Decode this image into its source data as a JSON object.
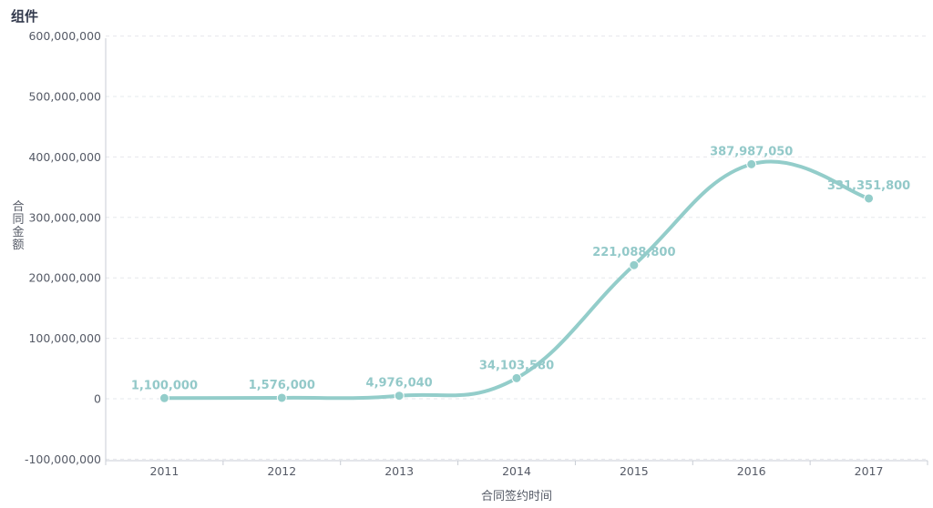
{
  "page": {
    "title": "组件"
  },
  "chart_data": {
    "type": "line",
    "title": "",
    "xlabel": "合同签约时间",
    "ylabel": "合同金额",
    "categories": [
      "2011",
      "2012",
      "2013",
      "2014",
      "2015",
      "2016",
      "2017"
    ],
    "series": [
      {
        "values": [
          1100000,
          1576000,
          4976040,
          34103580,
          221088800,
          387987050,
          331351800
        ],
        "labels": [
          "1,100,000",
          "1,576,000",
          "4,976,040",
          "34,103,580",
          "221,088,800",
          "387,987,050",
          "331,351,800"
        ],
        "color": "#93cdca",
        "smooth": true
      }
    ],
    "ylim": [
      -100000000,
      600000000
    ],
    "yticks": [
      -100000000,
      0,
      100000000,
      200000000,
      300000000,
      400000000,
      500000000,
      600000000
    ],
    "ytick_labels": [
      "-100,000,000",
      "0",
      "100,000,000",
      "200,000,000",
      "300,000,000",
      "400,000,000",
      "500,000,000",
      "600,000,000"
    ],
    "grid": true
  }
}
